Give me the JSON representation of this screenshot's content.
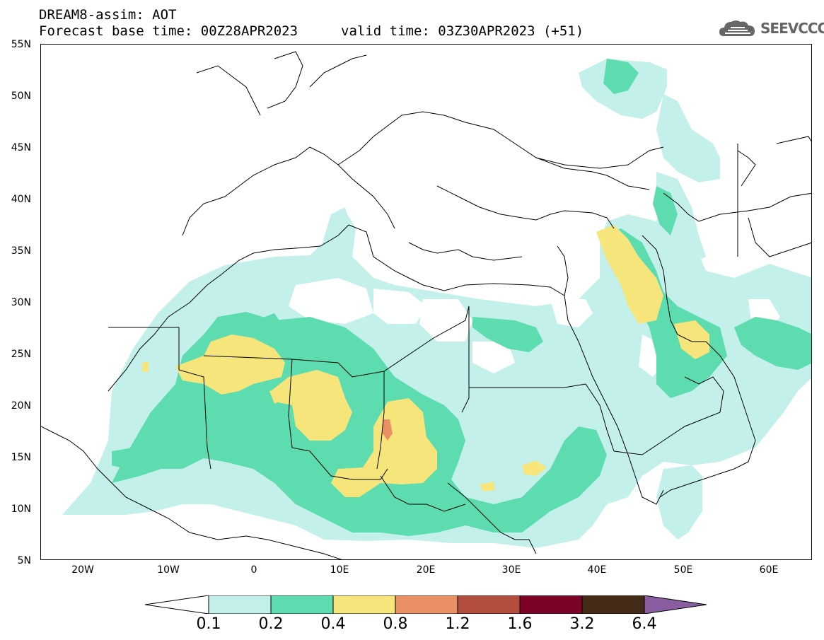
{
  "header": {
    "title": "DREAM8-assim: AOT",
    "base_time": "Forecast base time: 00Z28APR2023",
    "valid_time": "valid time: 03Z30APR2023 (+51)"
  },
  "logo": {
    "text": "SEEVCCC",
    "icon": "cloud-logo-icon"
  },
  "map": {
    "lat_labels": [
      "55N",
      "50N",
      "45N",
      "40N",
      "35N",
      "30N",
      "25N",
      "20N",
      "15N",
      "10N",
      "5N"
    ],
    "lon_labels": [
      "20W",
      "10W",
      "0",
      "10E",
      "20E",
      "30E",
      "40E",
      "50E",
      "60E"
    ],
    "lon_range": [
      -25,
      65
    ],
    "lat_range": [
      5,
      55
    ],
    "variable": "AOT"
  },
  "colorbar": {
    "levels": [
      "0.1",
      "0.2",
      "0.4",
      "0.8",
      "1.2",
      "1.6",
      "3.2",
      "6.4"
    ],
    "colors": [
      "#ffffff",
      "#c3f0ea",
      "#5cdcaf",
      "#f5e57b",
      "#ea9065",
      "#b34d3e",
      "#7d0227",
      "#432b18",
      "#8a5ca0"
    ]
  }
}
